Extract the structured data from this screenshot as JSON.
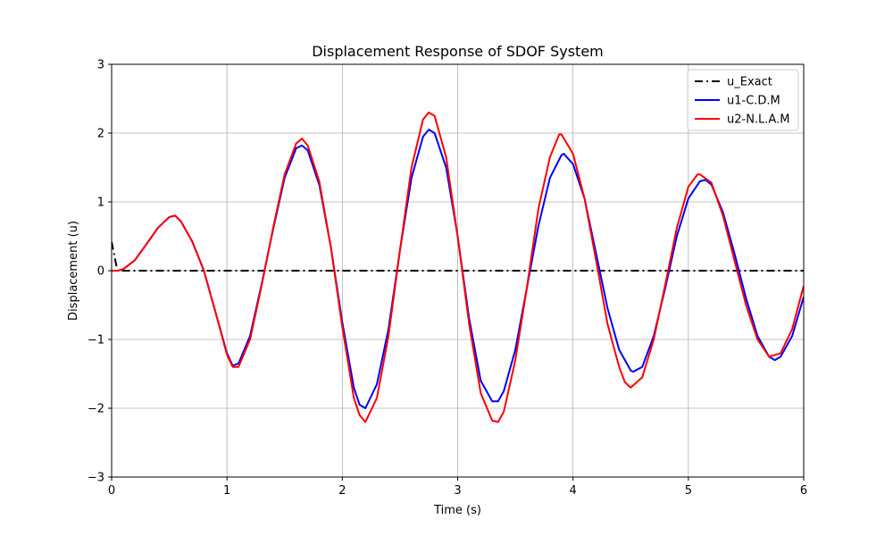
{
  "chart_data": {
    "type": "line",
    "title": "Displacement Response of SDOF System",
    "xlabel": "Time (s)",
    "ylabel": "Displacement (u)",
    "xlim": [
      0,
      6
    ],
    "ylim": [
      -3,
      3
    ],
    "xticks": [
      0,
      1,
      2,
      3,
      4,
      5,
      6
    ],
    "yticks": [
      -3,
      -2,
      -1,
      0,
      1,
      2,
      3
    ],
    "xtick_labels": [
      "0",
      "1",
      "2",
      "3",
      "4",
      "5",
      "6"
    ],
    "ytick_labels": [
      "−3",
      "−2",
      "−1",
      "0",
      "1",
      "2",
      "3"
    ],
    "grid": true,
    "legend_position": "top-right",
    "series": [
      {
        "name": "u_Exact",
        "color": "#000000",
        "style": "dashdot",
        "x": [
          0,
          0.05,
          0.1,
          6
        ],
        "y": [
          0.42,
          0.0,
          0.0,
          0.0
        ]
      },
      {
        "name": "u1-C.D.M",
        "color": "#0000ff",
        "style": "solid",
        "x": [
          0,
          0.05,
          0.1,
          0.2,
          0.3,
          0.4,
          0.5,
          0.55,
          0.6,
          0.7,
          0.8,
          0.9,
          1.0,
          1.05,
          1.1,
          1.2,
          1.3,
          1.4,
          1.5,
          1.6,
          1.65,
          1.7,
          1.8,
          1.9,
          2.0,
          2.1,
          2.15,
          2.2,
          2.3,
          2.4,
          2.5,
          2.6,
          2.7,
          2.75,
          2.8,
          2.9,
          3.0,
          3.1,
          3.2,
          3.3,
          3.35,
          3.4,
          3.5,
          3.6,
          3.7,
          3.8,
          3.9,
          3.92,
          4.0,
          4.1,
          4.2,
          4.3,
          4.4,
          4.5,
          4.52,
          4.6,
          4.7,
          4.8,
          4.9,
          5.0,
          5.1,
          5.15,
          5.2,
          5.3,
          5.4,
          5.5,
          5.6,
          5.7,
          5.75,
          5.8,
          5.9,
          6.0
        ],
        "y": [
          0.0,
          0.0,
          0.02,
          0.15,
          0.38,
          0.62,
          0.78,
          0.8,
          0.72,
          0.42,
          0.0,
          -0.6,
          -1.2,
          -1.38,
          -1.35,
          -0.95,
          -0.2,
          0.6,
          1.35,
          1.78,
          1.82,
          1.75,
          1.25,
          0.35,
          -0.75,
          -1.7,
          -1.95,
          -2.0,
          -1.65,
          -0.85,
          0.3,
          1.35,
          1.95,
          2.05,
          2.0,
          1.5,
          0.5,
          -0.7,
          -1.6,
          -1.9,
          -1.9,
          -1.75,
          -1.15,
          -0.25,
          0.65,
          1.35,
          1.68,
          1.7,
          1.55,
          1.05,
          0.25,
          -0.55,
          -1.15,
          -1.45,
          -1.47,
          -1.4,
          -0.95,
          -0.25,
          0.5,
          1.05,
          1.3,
          1.32,
          1.25,
          0.85,
          0.25,
          -0.4,
          -0.95,
          -1.25,
          -1.3,
          -1.25,
          -0.95,
          -0.38
        ]
      },
      {
        "name": "u2-N.L.A.M",
        "color": "#ff0000",
        "style": "solid",
        "x": [
          0,
          0.05,
          0.1,
          0.2,
          0.3,
          0.4,
          0.5,
          0.55,
          0.6,
          0.7,
          0.8,
          0.9,
          1.0,
          1.05,
          1.1,
          1.2,
          1.3,
          1.4,
          1.5,
          1.6,
          1.65,
          1.7,
          1.8,
          1.9,
          2.0,
          2.1,
          2.15,
          2.2,
          2.3,
          2.4,
          2.5,
          2.6,
          2.7,
          2.75,
          2.8,
          2.9,
          3.0,
          3.1,
          3.2,
          3.3,
          3.35,
          3.4,
          3.5,
          3.6,
          3.7,
          3.8,
          3.88,
          3.9,
          4.0,
          4.1,
          4.2,
          4.3,
          4.4,
          4.45,
          4.5,
          4.6,
          4.7,
          4.8,
          4.9,
          5.0,
          5.08,
          5.1,
          5.2,
          5.3,
          5.4,
          5.5,
          5.6,
          5.7,
          5.8,
          5.9,
          6.0
        ],
        "y": [
          0.0,
          0.0,
          0.02,
          0.15,
          0.38,
          0.62,
          0.78,
          0.8,
          0.72,
          0.42,
          0.0,
          -0.6,
          -1.22,
          -1.4,
          -1.4,
          -1.0,
          -0.22,
          0.62,
          1.4,
          1.85,
          1.92,
          1.82,
          1.3,
          0.35,
          -0.82,
          -1.85,
          -2.1,
          -2.2,
          -1.85,
          -0.95,
          0.3,
          1.5,
          2.2,
          2.3,
          2.25,
          1.65,
          0.5,
          -0.78,
          -1.78,
          -2.18,
          -2.2,
          -2.05,
          -1.3,
          -0.25,
          0.9,
          1.65,
          1.98,
          1.98,
          1.7,
          1.05,
          0.15,
          -0.78,
          -1.4,
          -1.62,
          -1.7,
          -1.55,
          -1.0,
          -0.2,
          0.62,
          1.22,
          1.4,
          1.4,
          1.28,
          0.8,
          0.15,
          -0.5,
          -1.0,
          -1.25,
          -1.2,
          -0.85,
          -0.22
        ]
      }
    ]
  }
}
